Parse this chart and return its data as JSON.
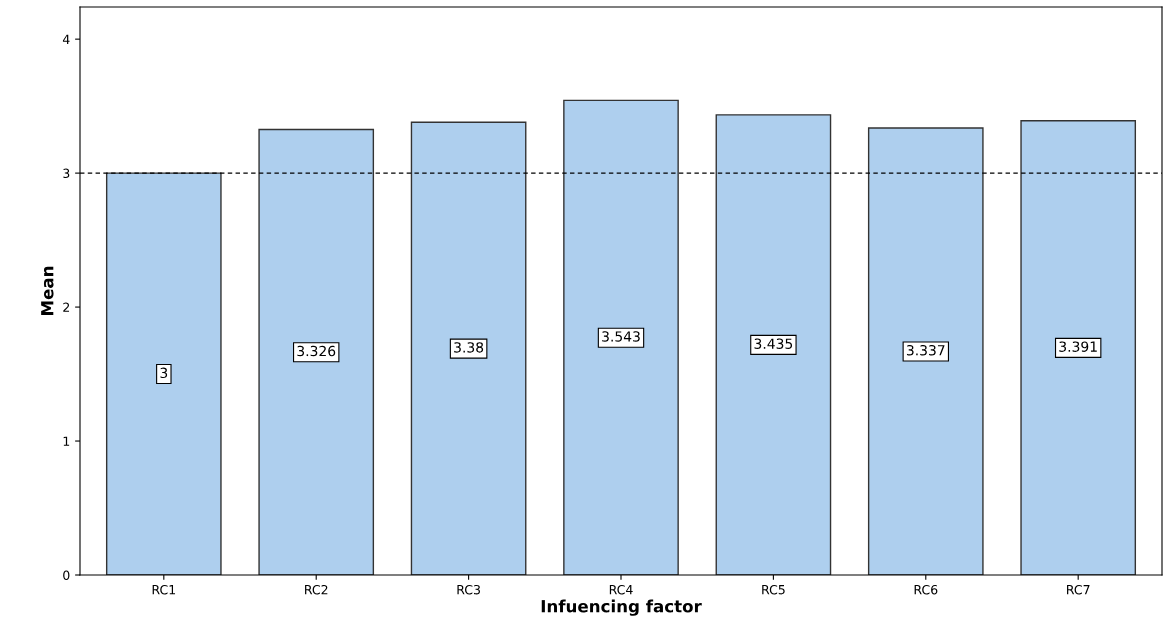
{
  "chart_data": {
    "type": "bar",
    "xlabel": "Infuencing factor",
    "ylabel": "Mean",
    "categories": [
      "RC1",
      "RC2",
      "RC3",
      "RC4",
      "RC5",
      "RC6",
      "RC7"
    ],
    "values": [
      3,
      3.326,
      3.38,
      3.543,
      3.435,
      3.337,
      3.391
    ],
    "color": "#aecfee",
    "data_labels": true,
    "ylim": [
      0,
      4.24
    ],
    "yticks": [
      0,
      1,
      2,
      3,
      4
    ],
    "ref_lines": [
      {
        "axis": "y",
        "value": 3,
        "line_style": "dashed",
        "color": "#000000"
      }
    ],
    "grid": false,
    "legend": false
  }
}
